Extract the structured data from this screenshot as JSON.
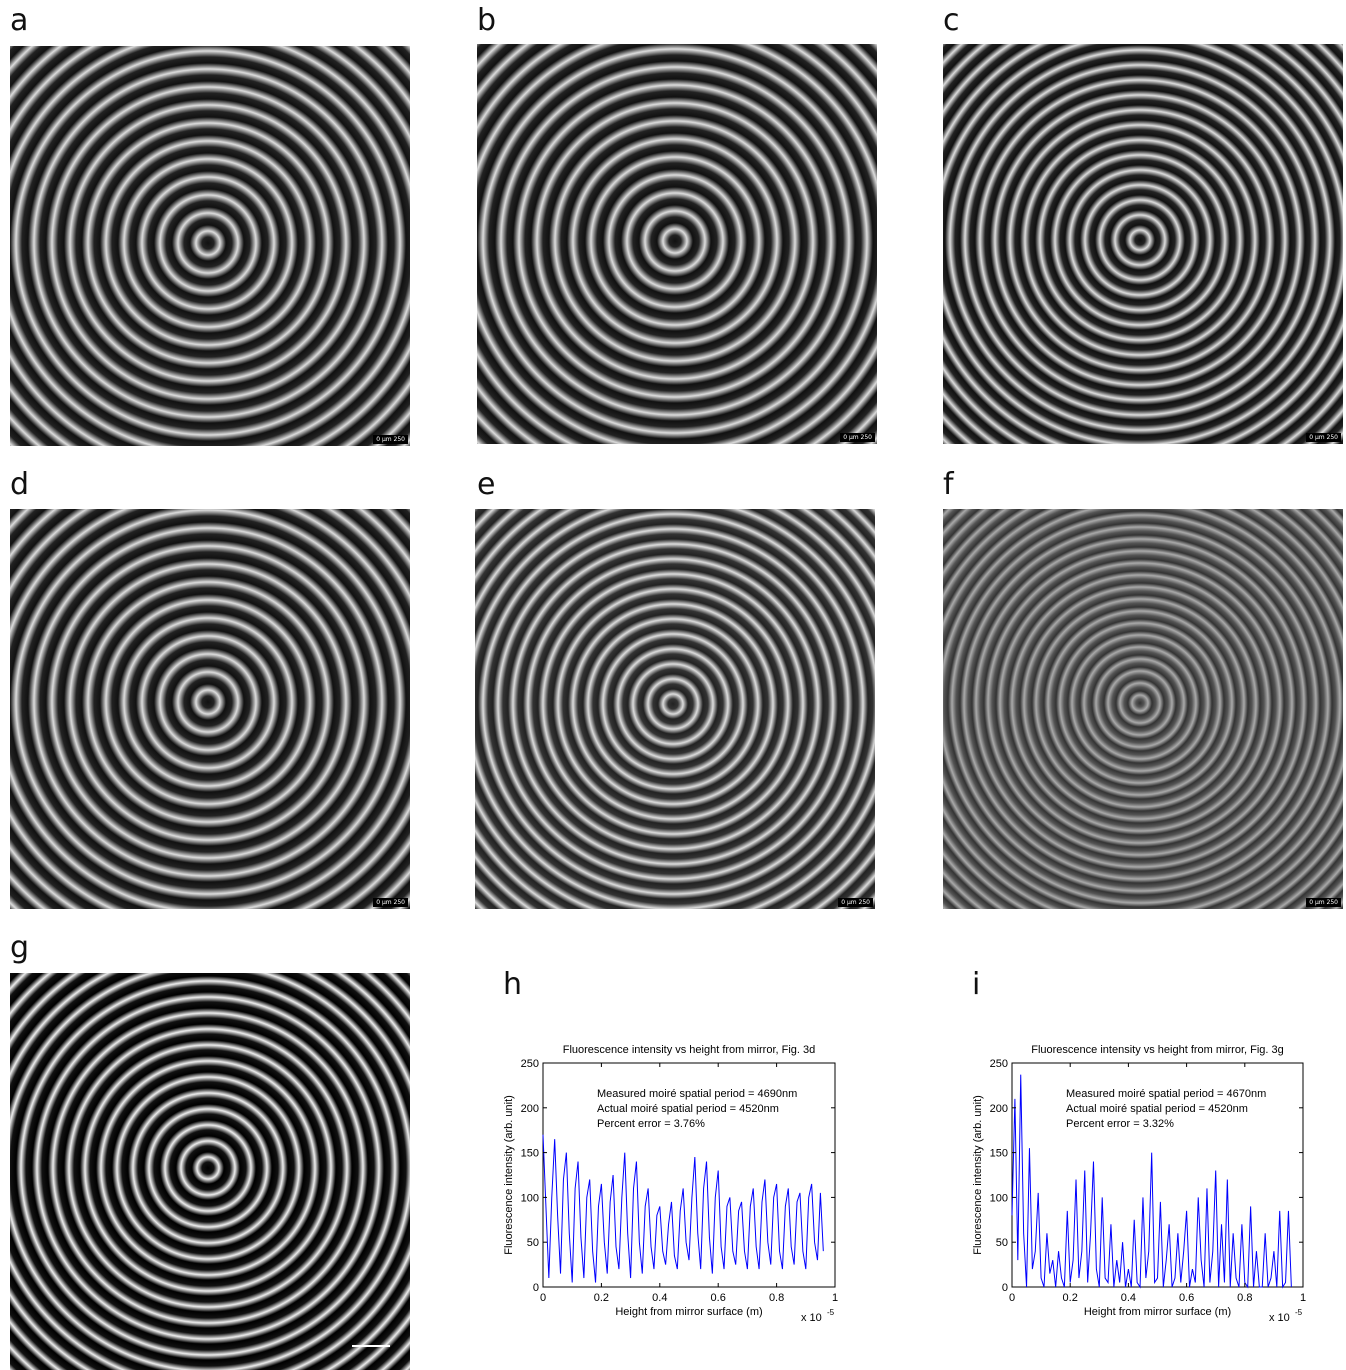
{
  "panel_labels": [
    "a",
    "b",
    "c",
    "d",
    "e",
    "f",
    "g",
    "h",
    "i"
  ],
  "scale_label": "0 µm 250",
  "chart_data": [
    {
      "type": "line",
      "title": "Fluorescence intensity vs height from mirror, Fig. 3d",
      "xlabel": "Height from mirror surface (m)",
      "ylabel": "Fluorescence intensity (arb. unit)",
      "annotations": [
        "Measured moiré spatial period = 4690nm",
        "Actual moiré spatial period = 4520nm",
        "Percent error = 3.76%"
      ],
      "x_offset_label": "x 10",
      "x_offset_exponent": "-5",
      "xlim": [
        0,
        1
      ],
      "ylim": [
        0,
        250
      ],
      "xticks": [
        0,
        0.2,
        0.4,
        0.6,
        0.8,
        1
      ],
      "yticks": [
        0,
        50,
        100,
        150,
        200,
        250
      ],
      "x": [
        0,
        0.01,
        0.02,
        0.03,
        0.04,
        0.05,
        0.06,
        0.07,
        0.08,
        0.09,
        0.1,
        0.11,
        0.12,
        0.13,
        0.14,
        0.15,
        0.16,
        0.17,
        0.18,
        0.19,
        0.2,
        0.21,
        0.22,
        0.23,
        0.24,
        0.25,
        0.26,
        0.27,
        0.28,
        0.29,
        0.3,
        0.31,
        0.32,
        0.33,
        0.34,
        0.35,
        0.36,
        0.37,
        0.38,
        0.39,
        0.4,
        0.41,
        0.42,
        0.43,
        0.44,
        0.45,
        0.46,
        0.47,
        0.48,
        0.49,
        0.5,
        0.51,
        0.52,
        0.53,
        0.54,
        0.55,
        0.56,
        0.57,
        0.58,
        0.59,
        0.6,
        0.61,
        0.62,
        0.63,
        0.64,
        0.65,
        0.66,
        0.67,
        0.68,
        0.69,
        0.7,
        0.71,
        0.72,
        0.73,
        0.74,
        0.75,
        0.76,
        0.77,
        0.78,
        0.79,
        0.8,
        0.81,
        0.82,
        0.83,
        0.84,
        0.85,
        0.86,
        0.87,
        0.88,
        0.89,
        0.9,
        0.91,
        0.92,
        0.93,
        0.94,
        0.95,
        0.96
      ],
      "series": [
        {
          "color": "#0000ff",
          "values": [
            170,
            90,
            10,
            100,
            165,
            80,
            15,
            120,
            150,
            60,
            5,
            110,
            140,
            55,
            10,
            100,
            120,
            40,
            5,
            90,
            115,
            50,
            15,
            95,
            125,
            45,
            20,
            100,
            150,
            60,
            10,
            110,
            140,
            50,
            15,
            90,
            110,
            45,
            20,
            80,
            90,
            40,
            25,
            70,
            95,
            35,
            20,
            85,
            110,
            50,
            30,
            100,
            145,
            60,
            20,
            110,
            140,
            55,
            15,
            100,
            130,
            45,
            20,
            90,
            100,
            40,
            25,
            85,
            95,
            40,
            20,
            90,
            110,
            45,
            20,
            95,
            120,
            50,
            25,
            100,
            115,
            40,
            20,
            90,
            110,
            45,
            25,
            95,
            105,
            40,
            20,
            100,
            115,
            50,
            30,
            105,
            40
          ]
        }
      ]
    },
    {
      "type": "line",
      "title": "Fluorescence intensity vs height from mirror, Fig. 3g",
      "xlabel": "Height from mirror surface (m)",
      "ylabel": "Fluorescence intensity (arb. unit)",
      "annotations": [
        "Measured moiré spatial period = 4670nm",
        "Actual moiré spatial period = 4520nm",
        "Percent error = 3.32%"
      ],
      "x_offset_label": "x 10",
      "x_offset_exponent": "-5",
      "xlim": [
        0,
        1
      ],
      "ylim": [
        0,
        250
      ],
      "xticks": [
        0,
        0.2,
        0.4,
        0.6,
        0.8,
        1
      ],
      "yticks": [
        0,
        50,
        100,
        150,
        200,
        250
      ],
      "x": [
        0,
        0.01,
        0.02,
        0.03,
        0.04,
        0.05,
        0.06,
        0.07,
        0.08,
        0.09,
        0.1,
        0.11,
        0.12,
        0.13,
        0.14,
        0.15,
        0.16,
        0.17,
        0.18,
        0.19,
        0.2,
        0.21,
        0.22,
        0.23,
        0.24,
        0.25,
        0.26,
        0.27,
        0.28,
        0.29,
        0.3,
        0.31,
        0.32,
        0.33,
        0.34,
        0.35,
        0.36,
        0.37,
        0.38,
        0.39,
        0.4,
        0.41,
        0.42,
        0.43,
        0.44,
        0.45,
        0.46,
        0.47,
        0.48,
        0.49,
        0.5,
        0.51,
        0.52,
        0.53,
        0.54,
        0.55,
        0.56,
        0.57,
        0.58,
        0.59,
        0.6,
        0.61,
        0.62,
        0.63,
        0.64,
        0.65,
        0.66,
        0.67,
        0.68,
        0.69,
        0.7,
        0.71,
        0.72,
        0.73,
        0.74,
        0.75,
        0.76,
        0.77,
        0.78,
        0.79,
        0.8,
        0.81,
        0.82,
        0.83,
        0.84,
        0.85,
        0.86,
        0.87,
        0.88,
        0.89,
        0.9,
        0.91,
        0.92,
        0.93,
        0.94,
        0.95,
        0.96
      ],
      "series": [
        {
          "color": "#0000ff",
          "values": [
            80,
            210,
            30,
            237,
            60,
            0,
            155,
            20,
            40,
            105,
            10,
            0,
            60,
            15,
            30,
            0,
            40,
            10,
            0,
            85,
            5,
            30,
            120,
            10,
            40,
            130,
            5,
            60,
            140,
            20,
            0,
            100,
            10,
            5,
            70,
            0,
            30,
            5,
            50,
            0,
            20,
            0,
            75,
            5,
            0,
            100,
            10,
            40,
            150,
            5,
            10,
            95,
            0,
            30,
            70,
            0,
            10,
            60,
            5,
            40,
            85,
            0,
            20,
            5,
            100,
            30,
            0,
            110,
            5,
            40,
            130,
            0,
            70,
            5,
            120,
            0,
            60,
            10,
            0,
            70,
            5,
            0,
            90,
            0,
            40,
            0,
            0,
            60,
            0,
            10,
            40,
            0,
            85,
            0,
            5,
            85,
            0
          ]
        }
      ]
    }
  ]
}
